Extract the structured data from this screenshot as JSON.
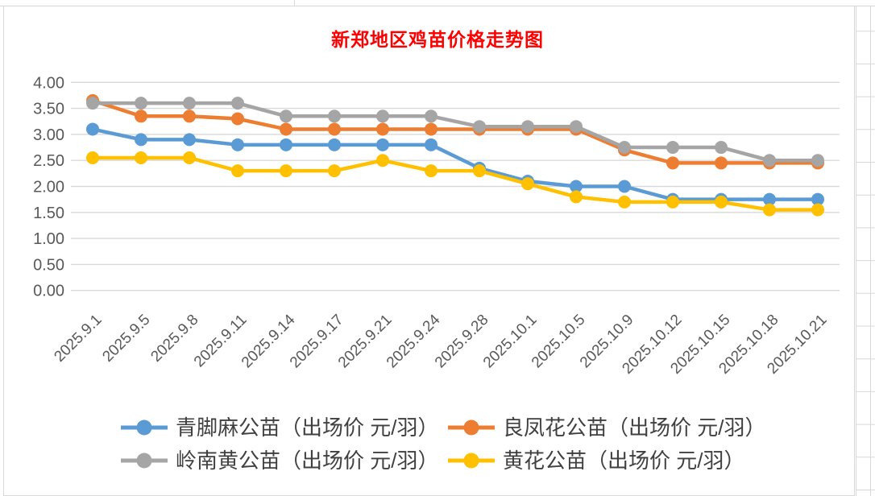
{
  "chart_data": {
    "type": "line",
    "title": "新郑地区鸡苗价格走势图",
    "title_color": "#FF0000",
    "categories": [
      "2025.9.1",
      "2025.9.5",
      "2025.9.8",
      "2025.9.11",
      "2025.9.14",
      "2025.9.17",
      "2025.9.21",
      "2025.9.24",
      "2025.9.28",
      "2025.10.1",
      "2025.10.5",
      "2025.10.9",
      "2025.10.12",
      "2025.10.15",
      "2025.10.18",
      "2025.10.21"
    ],
    "series": [
      {
        "name": "青脚麻公苗（出场价 元/羽）",
        "color": "#5B9BD5",
        "values": [
          3.1,
          2.9,
          2.9,
          2.8,
          2.8,
          2.8,
          2.8,
          2.8,
          2.35,
          2.1,
          2.0,
          2.0,
          1.75,
          1.75,
          1.75,
          1.75
        ]
      },
      {
        "name": "良凤花公苗（出场价 元/羽）",
        "color": "#ED7D31",
        "values": [
          3.65,
          3.35,
          3.35,
          3.3,
          3.1,
          3.1,
          3.1,
          3.1,
          3.1,
          3.1,
          3.1,
          2.7,
          2.45,
          2.45,
          2.45,
          2.45
        ]
      },
      {
        "name": "岭南黄公苗（出场价 元/羽）",
        "color": "#A5A5A5",
        "values": [
          3.6,
          3.6,
          3.6,
          3.6,
          3.35,
          3.35,
          3.35,
          3.35,
          3.15,
          3.15,
          3.15,
          2.75,
          2.75,
          2.75,
          2.5,
          2.5
        ]
      },
      {
        "name": "黄花公苗（出场价 元/羽）",
        "color": "#FFC000",
        "values": [
          2.55,
          2.55,
          2.55,
          2.3,
          2.3,
          2.3,
          2.5,
          2.3,
          2.3,
          2.05,
          1.8,
          1.7,
          1.7,
          1.7,
          1.55,
          1.55
        ]
      }
    ],
    "ylim": [
      0,
      4
    ],
    "ytick_step": 0.5,
    "y_tick_labels": [
      "0.00",
      "0.50",
      "1.00",
      "1.50",
      "2.00",
      "2.50",
      "3.00",
      "3.50",
      "4.00"
    ],
    "grid": true,
    "legend_position": "bottom",
    "axis_text_color": "#595959",
    "gridline_color": "#D9D9D9"
  }
}
